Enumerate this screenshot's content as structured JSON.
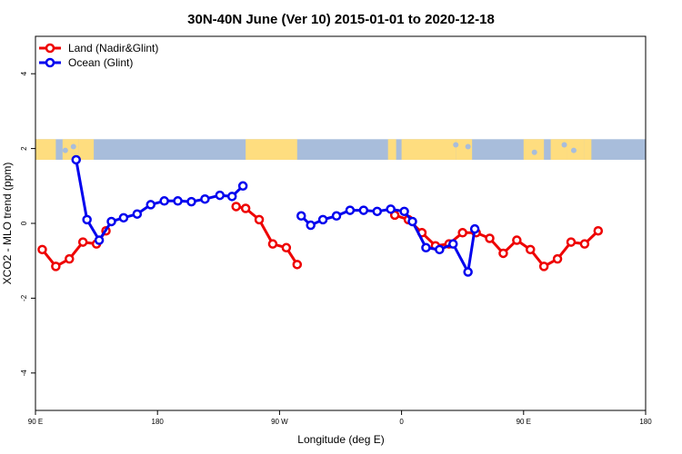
{
  "chart_data": {
    "type": "line",
    "title": "30N-40N June (Ver 10)   2015-01-01 to 2020-12-18",
    "xlabel": "Longitude (deg E)",
    "ylabel": "XCO2 - MLO trend (ppm)",
    "xlim": [
      90,
      450
    ],
    "ylim": [
      -5,
      5
    ],
    "x_ticks": [
      {
        "value": 90,
        "label": "90 E"
      },
      {
        "value": 180,
        "label": "180"
      },
      {
        "value": 270,
        "label": "90 W"
      },
      {
        "value": 360,
        "label": "0"
      },
      {
        "value": 450,
        "label": "90 E"
      },
      {
        "value": 540,
        "label": "180"
      }
    ],
    "y_ticks": [
      {
        "value": -4,
        "label": "-4"
      },
      {
        "value": -2,
        "label": "-2"
      },
      {
        "value": 0,
        "label": "0"
      },
      {
        "value": 2,
        "label": "2"
      },
      {
        "value": 4,
        "label": "4"
      }
    ],
    "x_range_shown": [
      90,
      540
    ],
    "legend_position": "top-left",
    "background_map": {
      "ymin": 1.7,
      "ymax": 2.25,
      "ocean_color": "#a8bddb",
      "land_color": "#fedd7f"
    },
    "series": [
      {
        "name": "Land (Nadir&Glint)",
        "color": "#ee0000",
        "segments": [
          {
            "x": [
              95,
              105,
              115,
              125,
              135,
              142
            ],
            "y": [
              -0.7,
              -1.15,
              -0.95,
              -0.5,
              -0.55,
              -0.2
            ]
          },
          {
            "x": [
              238,
              245,
              255,
              265,
              275,
              283
            ],
            "y": [
              0.45,
              0.4,
              0.1,
              -0.55,
              -0.65,
              -1.1
            ]
          },
          {
            "x": [
              355,
              365,
              375,
              385,
              395,
              405,
              415,
              425,
              435,
              445,
              455,
              465,
              475,
              485,
              495,
              505,
              515,
              525,
              535,
              545,
              555
            ],
            "y": [
              0.22,
              0.1,
              -0.25,
              -0.6,
              -0.55,
              -0.25,
              -0.25,
              -0.4,
              -0.8,
              -0.45,
              -0.7,
              -1.15,
              -0.95,
              -0.5,
              -0.55,
              -0.2,
              null,
              null,
              null,
              null,
              null
            ]
          }
        ]
      },
      {
        "name": "Ocean (Glint)",
        "color": "#0000ee",
        "segments": [
          {
            "x": [
              120,
              128,
              137,
              146,
              155,
              165,
              175,
              185,
              195,
              205,
              215,
              226,
              235,
              243
            ],
            "y": [
              1.7,
              0.1,
              -0.45,
              0.05,
              0.15,
              0.25,
              0.5,
              0.6,
              0.6,
              0.58,
              0.65,
              0.75,
              0.72,
              1.0
            ]
          },
          {
            "x": [
              286,
              293,
              302,
              312,
              322,
              332,
              342,
              352,
              362,
              368,
              378,
              388,
              398,
              409,
              414
            ],
            "y": [
              0.2,
              -0.05,
              0.1,
              0.2,
              0.35,
              0.35,
              0.32,
              0.38,
              0.32,
              0.05,
              -0.65,
              -0.7,
              -0.55,
              -1.3,
              -0.15
            ]
          }
        ]
      }
    ]
  }
}
